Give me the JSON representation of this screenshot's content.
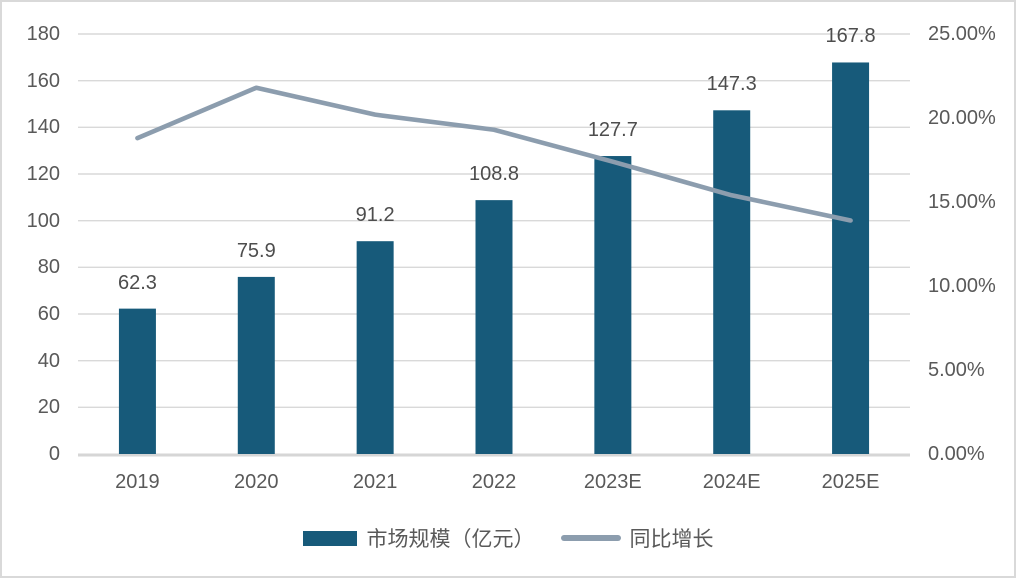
{
  "chart_data": {
    "type": "combo-bar-line",
    "title": "",
    "categories": [
      "2019",
      "2020",
      "2021",
      "2022",
      "2023E",
      "2024E",
      "2025E"
    ],
    "series": [
      {
        "name": "市场规模（亿元）",
        "type": "bar",
        "axis": "left",
        "color": "#175A7A",
        "values": [
          62.3,
          75.9,
          91.2,
          108.8,
          127.7,
          147.3,
          167.8
        ],
        "data_labels": [
          "62.3",
          "75.9",
          "91.2",
          "108.8",
          "127.7",
          "147.3",
          "167.8"
        ]
      },
      {
        "name": "同比增长",
        "type": "line",
        "axis": "right",
        "color": "#8C9DAE",
        "unit": "%",
        "values": [
          18.8,
          21.8,
          20.2,
          19.3,
          17.4,
          15.4,
          13.9
        ]
      }
    ],
    "axes": {
      "left": {
        "min": 0,
        "max": 180,
        "step": 20,
        "ticks": [
          "0",
          "20",
          "40",
          "60",
          "80",
          "100",
          "120",
          "140",
          "160",
          "180"
        ]
      },
      "right": {
        "min": 0,
        "max": 25,
        "step": 5,
        "ticks": [
          "0.00%",
          "5.00%",
          "10.00%",
          "15.00%",
          "20.00%",
          "25.00%"
        ]
      }
    },
    "grid": "horizontal",
    "legend_position": "bottom",
    "colors": {
      "bar": "#175A7A",
      "line": "#8C9DAE",
      "grid": "#D9D9D9",
      "axis_line": "#D6D6D6",
      "text": "#595959",
      "data_label_text": "#4D4D4D",
      "background": "#FFFFFF",
      "border": "#D9D9D9"
    }
  }
}
